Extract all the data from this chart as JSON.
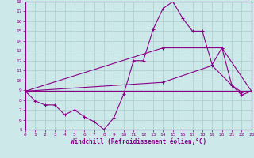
{
  "xlabel": "Windchill (Refroidissement éolien,°C)",
  "xlim": [
    0,
    23
  ],
  "ylim": [
    5,
    18
  ],
  "yticks": [
    5,
    6,
    7,
    8,
    9,
    10,
    11,
    12,
    13,
    14,
    15,
    16,
    17,
    18
  ],
  "xticks": [
    0,
    1,
    2,
    3,
    4,
    5,
    6,
    7,
    8,
    9,
    10,
    11,
    12,
    13,
    14,
    15,
    16,
    17,
    18,
    19,
    20,
    21,
    22,
    23
  ],
  "bg_color": "#cce8e8",
  "line_color": "#880088",
  "grid_color": "#aacccc",
  "line1_x": [
    0,
    1,
    2,
    3,
    4,
    5,
    6,
    7,
    8,
    9,
    10,
    11,
    12,
    13,
    14,
    15,
    16,
    17,
    18,
    19,
    20,
    21,
    22,
    23
  ],
  "line1_y": [
    8.9,
    7.9,
    7.5,
    7.5,
    6.5,
    7.0,
    6.3,
    5.8,
    5.0,
    6.2,
    8.6,
    12.0,
    12.0,
    15.2,
    17.3,
    18.0,
    16.3,
    15.0,
    15.0,
    11.6,
    13.3,
    9.5,
    8.8,
    8.9
  ],
  "line2_x": [
    0,
    23
  ],
  "line2_y": [
    8.9,
    8.9
  ],
  "line3_x": [
    0,
    14,
    20,
    23
  ],
  "line3_y": [
    8.9,
    13.3,
    13.3,
    8.9
  ],
  "line4_x": [
    0,
    14,
    19,
    22,
    23
  ],
  "line4_y": [
    8.9,
    9.8,
    11.5,
    8.5,
    8.9
  ]
}
